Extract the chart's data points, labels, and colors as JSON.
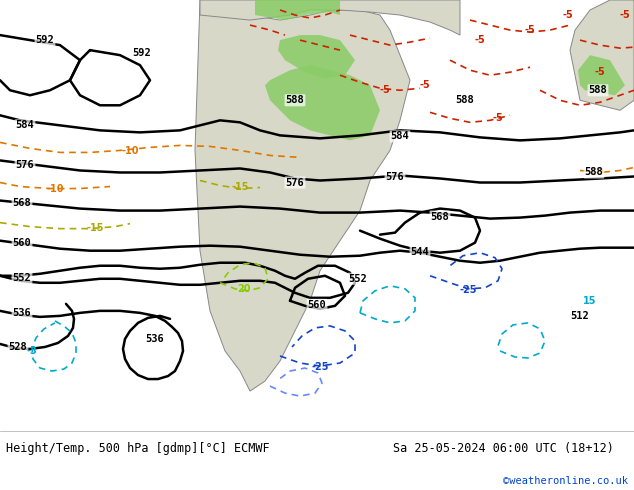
{
  "title_left": "Height/Temp. 500 hPa [gdmp][°C] ECMWF",
  "title_right": "Sa 25-05-2024 06:00 UTC (18+12)",
  "credit": "©weatheronline.co.uk",
  "bg_color": "#ffffff",
  "map_bg": "#f0f0f0",
  "land_color": "#e8e8e8",
  "green_color": "#90c878",
  "bottom_bar_color": "#ffffff",
  "label_color_black": "#000000",
  "label_color_red": "#cc0000",
  "label_color_orange": "#ff8800",
  "label_color_yellow": "#cccc00",
  "label_color_blue": "#0000cc",
  "label_color_cyan": "#00aacc",
  "figwidth": 6.34,
  "figheight": 4.9
}
